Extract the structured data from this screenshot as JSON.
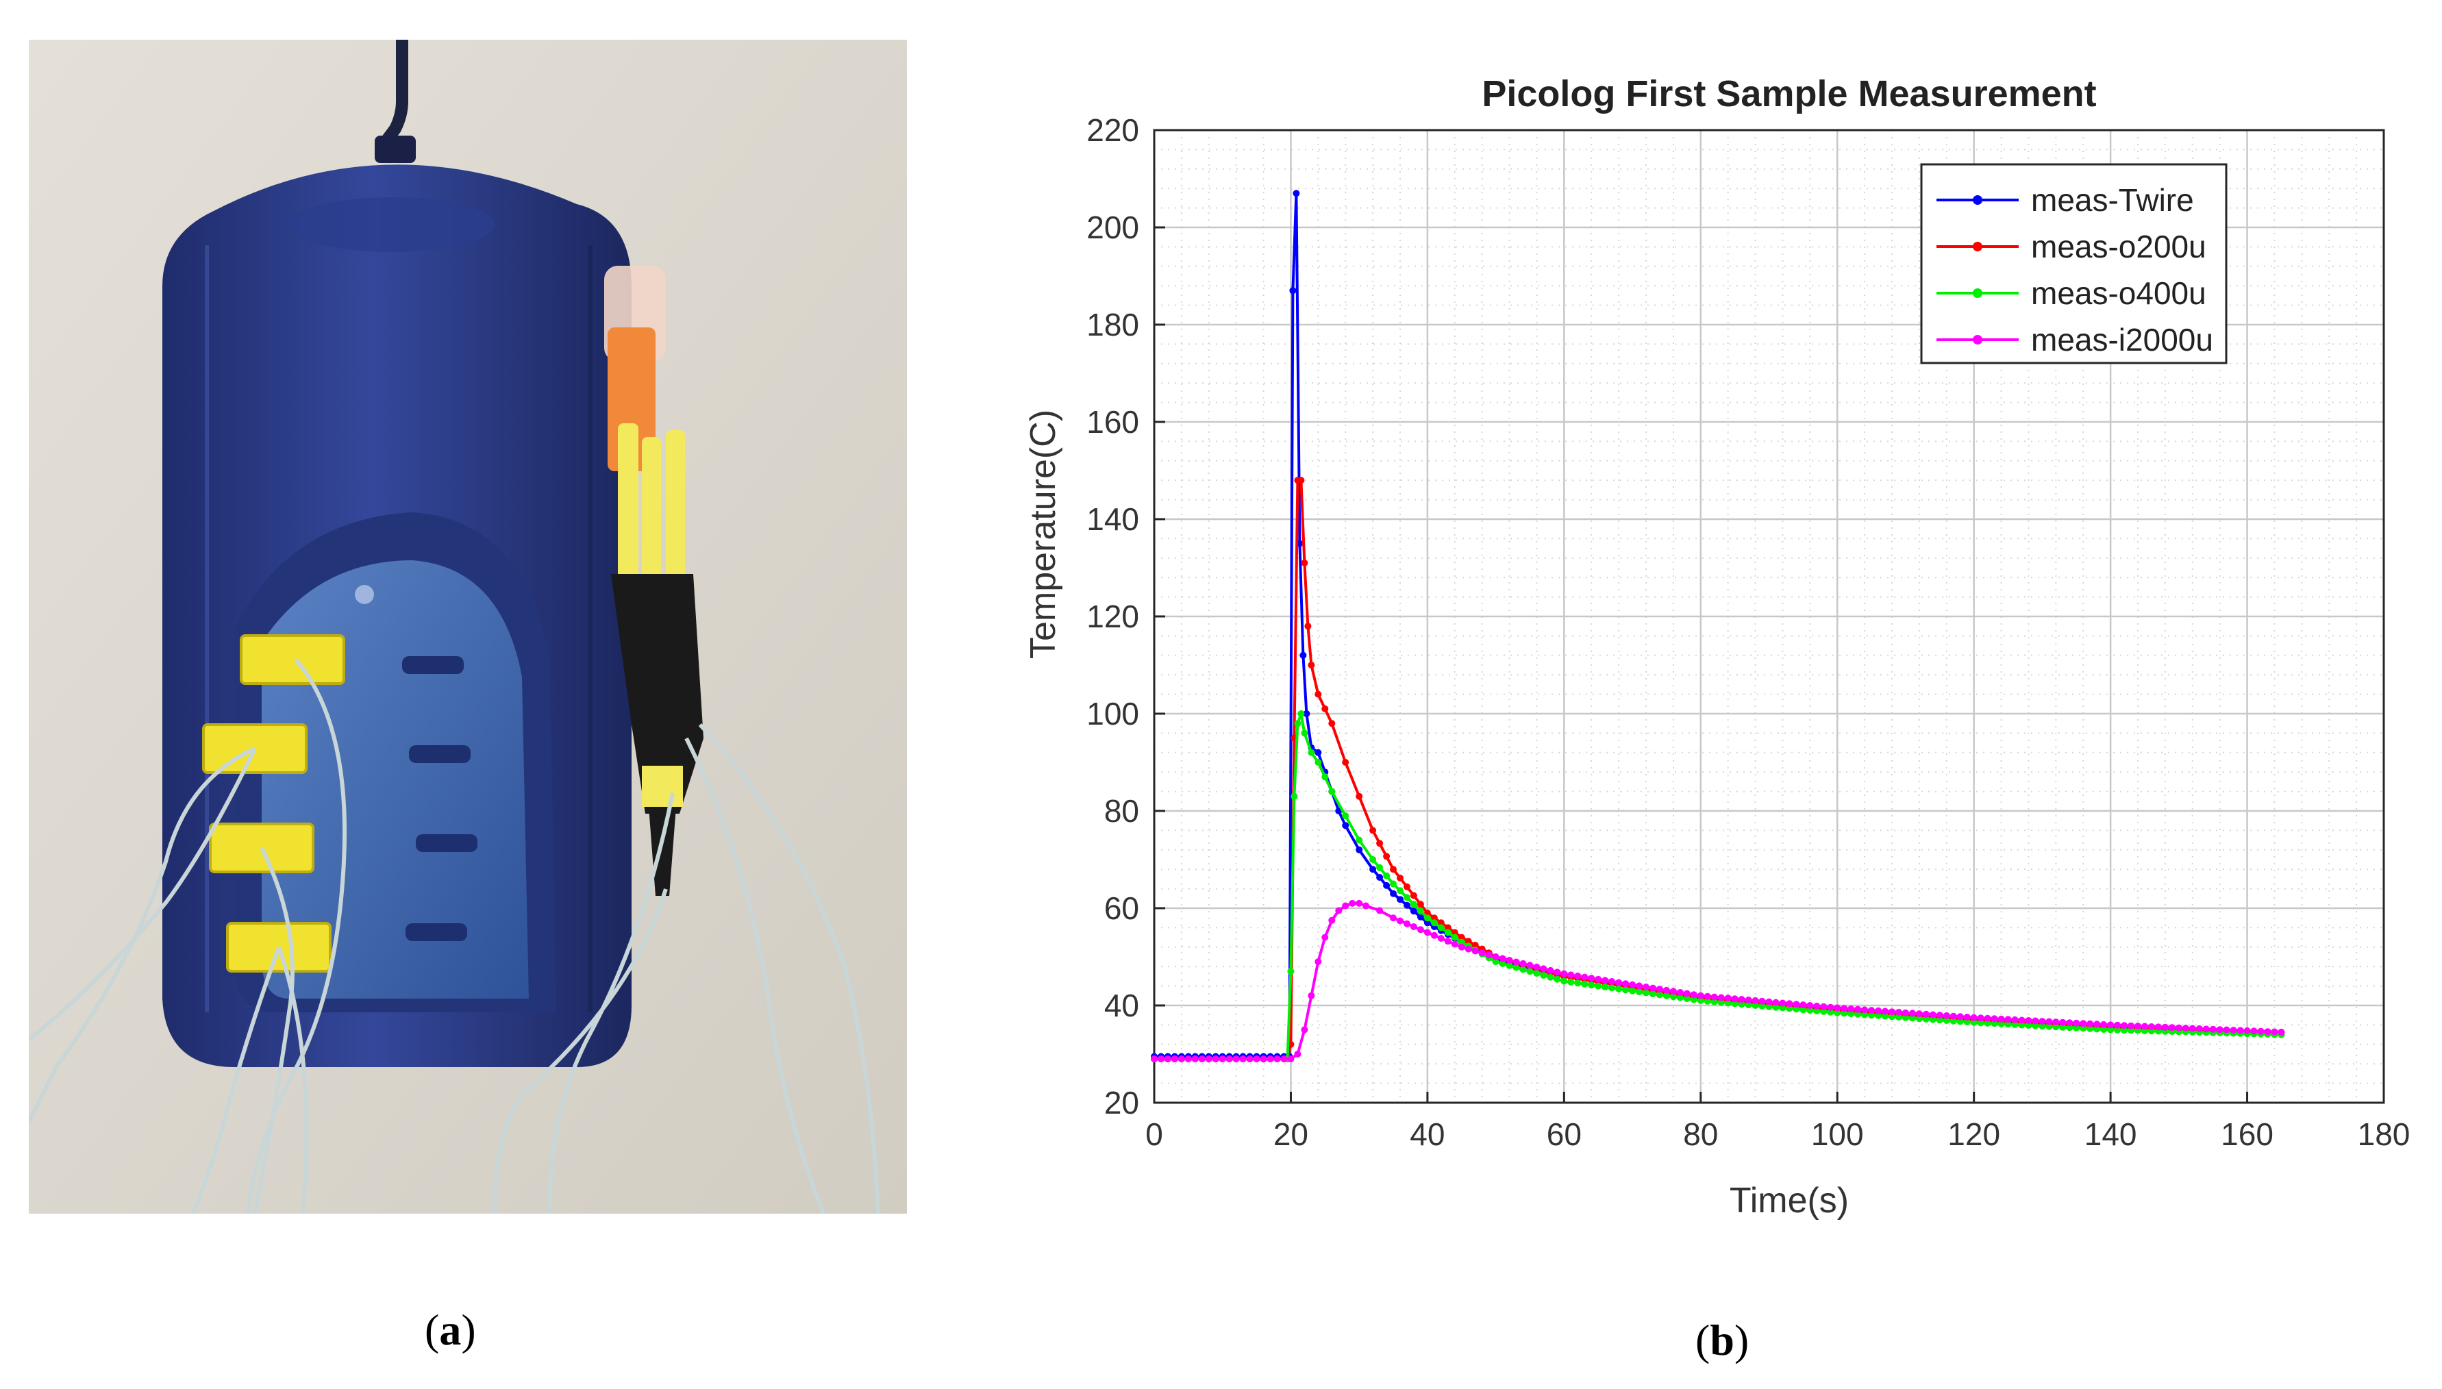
{
  "colors": {
    "wall": "#ddd8cf",
    "device_body": "#2a3a82",
    "device_panel": "#3c63ad",
    "connector": "#f0e22e",
    "tape": "#1a1a1a",
    "series_twire": "#0000ff",
    "series_o200u": "#ff0000",
    "series_o400u": "#00ee00",
    "series_i2000u": "#ff00ff"
  },
  "captions": {
    "a": "a",
    "b": "b"
  },
  "chart_data": {
    "type": "line",
    "title": "Picolog First Sample Measurement",
    "xlabel": "Time(s)",
    "ylabel": "Temperature(C)",
    "xlim": [
      0,
      180
    ],
    "ylim": [
      20,
      220
    ],
    "x_ticks": [
      0,
      20,
      40,
      60,
      80,
      100,
      120,
      140,
      160,
      180
    ],
    "y_ticks": [
      20,
      40,
      60,
      80,
      100,
      120,
      140,
      160,
      180,
      200,
      220
    ],
    "grid": true,
    "minor_grid": true,
    "legend_position": "top-right",
    "series": [
      {
        "name": "meas-Twire",
        "color_key": "series_twire",
        "x": [
          0,
          19.8,
          20.3,
          20.8,
          21.3,
          21.8,
          22.3,
          23,
          24,
          25,
          26,
          27,
          28,
          30,
          32,
          35,
          40,
          45,
          50,
          60,
          80,
          100,
          120,
          140,
          165
        ],
        "y": [
          29.5,
          29.5,
          187,
          207,
          135,
          112,
          100,
          93,
          92,
          88,
          84,
          80,
          77,
          72,
          68,
          63,
          57,
          53,
          49.5,
          46,
          41.5,
          39,
          37,
          35.5,
          34.5
        ]
      },
      {
        "name": "meas-o200u",
        "color_key": "series_o200u",
        "x": [
          0,
          19.5,
          20,
          20.5,
          21,
          21.5,
          22,
          22.5,
          23,
          24,
          25,
          26,
          28,
          30,
          32,
          35,
          40,
          45,
          50,
          60,
          80,
          100,
          120,
          140,
          165
        ],
        "y": [
          29,
          29,
          32,
          95,
          148,
          148,
          131,
          118,
          110,
          104,
          101,
          98,
          90,
          83,
          76,
          68,
          59,
          54,
          50,
          46,
          41.5,
          39,
          37,
          35.5,
          34
        ]
      },
      {
        "name": "meas-o400u",
        "color_key": "series_o400u",
        "x": [
          0,
          19.5,
          20,
          20.5,
          21,
          21.5,
          22,
          23,
          24,
          25,
          26,
          28,
          30,
          32,
          35,
          40,
          45,
          50,
          60,
          80,
          100,
          120,
          140,
          165
        ],
        "y": [
          29,
          29,
          47,
          83,
          98,
          100,
          96,
          92,
          90,
          87,
          84,
          79,
          74,
          70,
          65,
          58,
          53,
          49,
          45,
          41,
          38.5,
          36.5,
          35,
          34
        ]
      },
      {
        "name": "meas-i2000u",
        "color_key": "series_i2000u",
        "x": [
          0,
          20,
          21,
          22,
          23,
          24,
          25,
          26,
          27,
          28,
          29,
          30,
          31,
          33,
          35,
          40,
          45,
          50,
          60,
          80,
          100,
          120,
          140,
          165
        ],
        "y": [
          29,
          29,
          30,
          35,
          42,
          49,
          54,
          57.5,
          59.5,
          60.5,
          61,
          61,
          60.5,
          59.5,
          58,
          55,
          52,
          50,
          46.5,
          42,
          39.5,
          37.5,
          36,
          34.5
        ]
      }
    ]
  }
}
